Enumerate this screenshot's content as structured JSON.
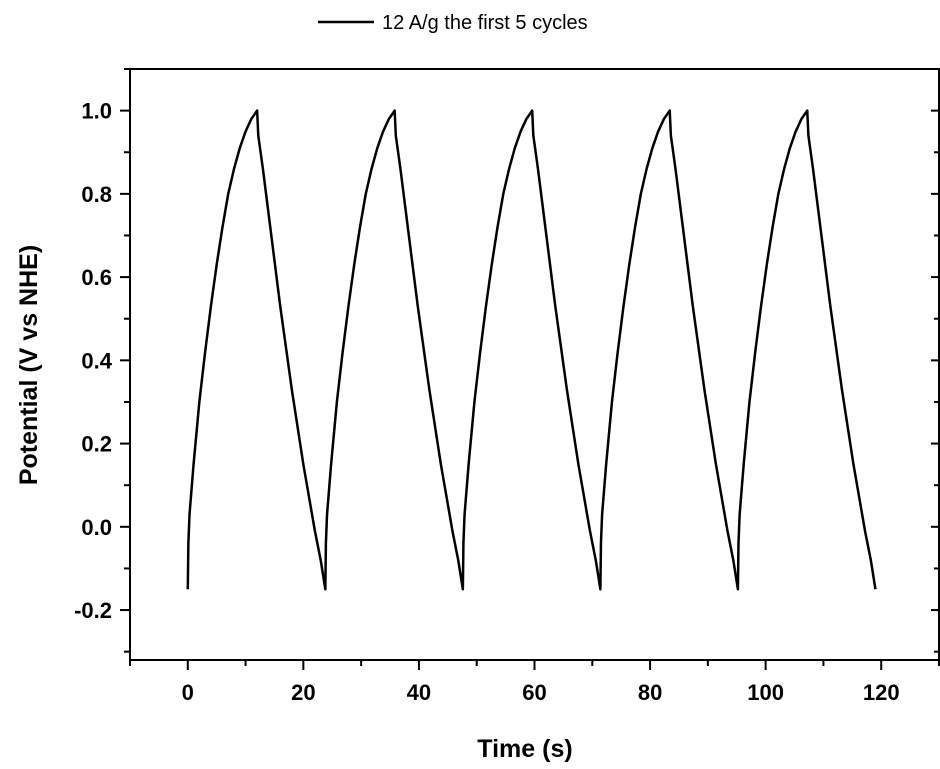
{
  "chart_data": {
    "type": "line",
    "title": "",
    "xlabel": "Time (s)",
    "ylabel": "Potential (V vs NHE)",
    "xlim": [
      -10,
      130
    ],
    "ylim": [
      -0.32,
      1.1
    ],
    "x_ticks": [
      0,
      20,
      40,
      60,
      80,
      100,
      120
    ],
    "x_tick_labels": [
      "0",
      "20",
      "40",
      "60",
      "80",
      "100",
      "120"
    ],
    "y_ticks": [
      -0.2,
      0.0,
      0.2,
      0.4,
      0.6,
      0.8,
      1.0
    ],
    "y_tick_labels": [
      "-0.2",
      "0.0",
      "0.2",
      "0.4",
      "0.6",
      "0.8",
      "1.0"
    ],
    "grid": false,
    "legend_position": "top-center",
    "line_color": "#000000",
    "series": [
      {
        "name": "12 A/g the first 5 cycles",
        "x": [
          0,
          0.1,
          0.3,
          1,
          2,
          3,
          4,
          5,
          6,
          7,
          8,
          9,
          10,
          11,
          12,
          12.2,
          13,
          14,
          15,
          16,
          17,
          18,
          19,
          20,
          21,
          22,
          23,
          23.8,
          23.9,
          24.1,
          24.8,
          25.8,
          26.8,
          27.8,
          28.8,
          29.8,
          30.8,
          31.8,
          32.8,
          33.8,
          34.8,
          35.8,
          36,
          36.8,
          37.8,
          38.8,
          39.8,
          40.8,
          41.8,
          42.8,
          43.8,
          44.8,
          45.8,
          46.8,
          47.6,
          47.7,
          47.9,
          48.6,
          49.6,
          50.6,
          51.6,
          52.6,
          53.6,
          54.6,
          55.6,
          56.6,
          57.6,
          58.6,
          59.6,
          59.8,
          60.6,
          61.6,
          62.6,
          63.6,
          64.6,
          65.6,
          66.6,
          67.6,
          68.6,
          69.6,
          70.6,
          71.4,
          71.5,
          71.7,
          72.4,
          73.4,
          74.4,
          75.4,
          76.4,
          77.4,
          78.4,
          79.4,
          80.4,
          81.4,
          82.4,
          83.4,
          83.6,
          84.4,
          85.4,
          86.4,
          87.4,
          88.4,
          89.4,
          90.4,
          91.4,
          92.4,
          93.4,
          94.4,
          95.2,
          95.3,
          95.5,
          96.2,
          97.2,
          98.2,
          99.2,
          100.2,
          101.2,
          102.2,
          103.2,
          104.2,
          105.2,
          106.2,
          107.2,
          107.4,
          108.2,
          109.2,
          110.2,
          111.2,
          112.2,
          113.2,
          114.2,
          115.2,
          116.2,
          117.2,
          118.2,
          119
        ],
        "y": [
          -0.15,
          -0.04,
          0.03,
          0.15,
          0.3,
          0.42,
          0.53,
          0.63,
          0.72,
          0.8,
          0.86,
          0.91,
          0.95,
          0.98,
          1.0,
          0.94,
          0.86,
          0.75,
          0.64,
          0.53,
          0.43,
          0.33,
          0.24,
          0.15,
          0.07,
          -0.01,
          -0.08,
          -0.15,
          -0.04,
          0.03,
          0.15,
          0.3,
          0.42,
          0.53,
          0.63,
          0.72,
          0.8,
          0.86,
          0.91,
          0.95,
          0.98,
          1.0,
          0.94,
          0.86,
          0.75,
          0.64,
          0.53,
          0.43,
          0.33,
          0.24,
          0.15,
          0.07,
          -0.01,
          -0.08,
          -0.15,
          -0.04,
          0.03,
          0.15,
          0.3,
          0.42,
          0.53,
          0.63,
          0.72,
          0.8,
          0.86,
          0.91,
          0.95,
          0.98,
          1.0,
          0.94,
          0.86,
          0.75,
          0.64,
          0.53,
          0.43,
          0.33,
          0.24,
          0.15,
          0.07,
          -0.01,
          -0.08,
          -0.15,
          -0.04,
          0.03,
          0.15,
          0.3,
          0.42,
          0.53,
          0.63,
          0.72,
          0.8,
          0.86,
          0.91,
          0.95,
          0.98,
          1.0,
          0.94,
          0.86,
          0.75,
          0.64,
          0.53,
          0.43,
          0.33,
          0.24,
          0.15,
          0.07,
          -0.01,
          -0.08,
          -0.15,
          -0.04,
          0.03,
          0.15,
          0.3,
          0.42,
          0.53,
          0.63,
          0.72,
          0.8,
          0.86,
          0.91,
          0.95,
          0.98,
          1.0,
          0.94,
          0.86,
          0.75,
          0.64,
          0.53,
          0.43,
          0.33,
          0.24,
          0.15,
          0.07,
          -0.01,
          -0.08,
          -0.15
        ]
      }
    ]
  }
}
